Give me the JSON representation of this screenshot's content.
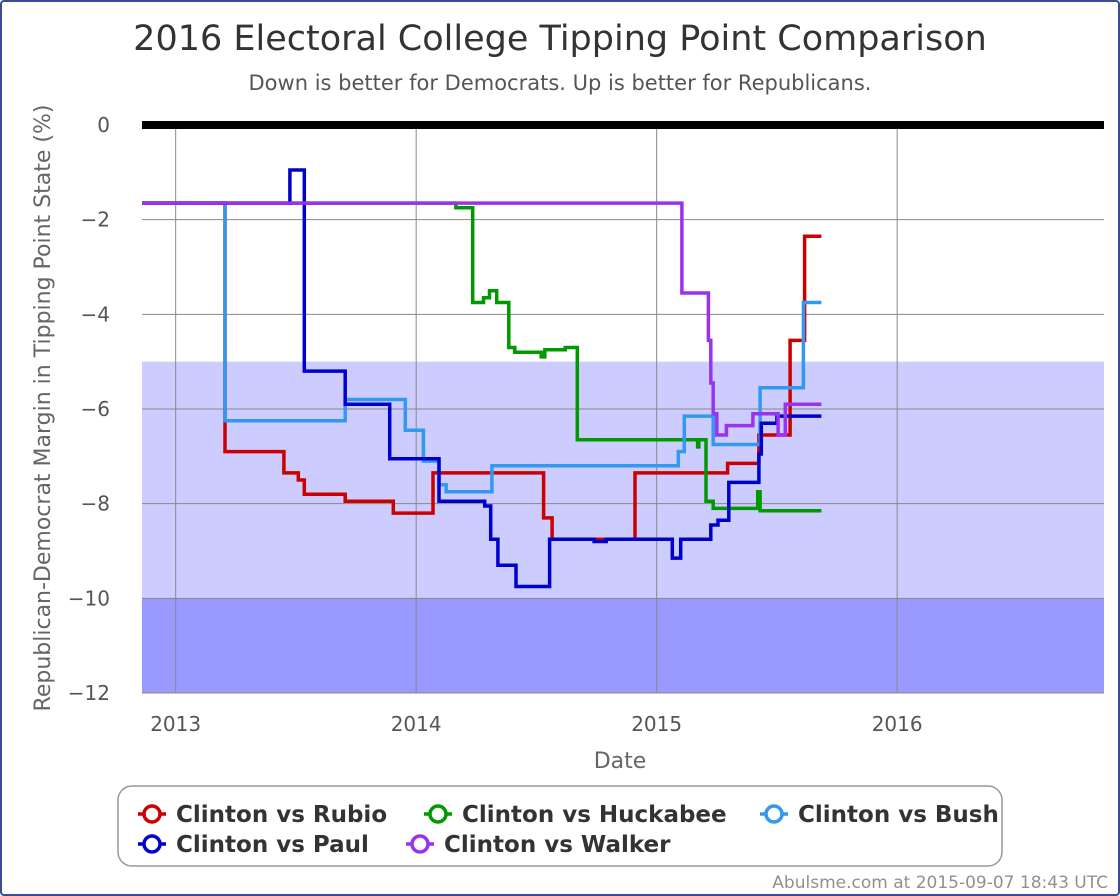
{
  "chart_data": {
    "type": "line",
    "title": "2016 Electoral College Tipping Point Comparison",
    "subtitle": "Down is better for Democrats. Up is better for Republicans.",
    "xlabel": "Date",
    "ylabel": "Republican-Democrat Margin in Tipping Point State (%)",
    "ylim": [
      -12,
      0
    ],
    "xlim": [
      2012.86,
      2016.86
    ],
    "x_ticks": [
      {
        "value": 2013,
        "label": "2013"
      },
      {
        "value": 2014,
        "label": "2014"
      },
      {
        "value": 2015,
        "label": "2015"
      },
      {
        "value": 2016,
        "label": "2016"
      }
    ],
    "y_ticks": [
      {
        "value": 0,
        "label": "0"
      },
      {
        "value": -2,
        "label": "−2"
      },
      {
        "value": -4,
        "label": "−4"
      },
      {
        "value": -6,
        "label": "−6"
      },
      {
        "value": -8,
        "label": "−8"
      },
      {
        "value": -10,
        "label": "−10"
      },
      {
        "value": -12,
        "label": "−12"
      }
    ],
    "grid": true,
    "bands": [
      {
        "from": -10,
        "to": -5,
        "color": "#ccccff"
      },
      {
        "from": -12,
        "to": -10,
        "color": "#9999ff"
      }
    ],
    "zero_line_color": "#000000",
    "legend_placement": "bottom",
    "series": [
      {
        "name": "Clinton vs Rubio",
        "color": "#cc0000",
        "points": [
          [
            2012.86,
            -1.65
          ],
          [
            2013.205,
            -1.65
          ],
          [
            2013.205,
            -6.9
          ],
          [
            2013.45,
            -6.9
          ],
          [
            2013.45,
            -7.35
          ],
          [
            2013.51,
            -7.35
          ],
          [
            2013.51,
            -7.5
          ],
          [
            2013.535,
            -7.5
          ],
          [
            2013.535,
            -7.8
          ],
          [
            2013.705,
            -7.8
          ],
          [
            2013.705,
            -7.95
          ],
          [
            2013.905,
            -7.95
          ],
          [
            2013.905,
            -8.2
          ],
          [
            2014.07,
            -8.2
          ],
          [
            2014.07,
            -7.35
          ],
          [
            2014.53,
            -7.35
          ],
          [
            2014.53,
            -8.3
          ],
          [
            2014.565,
            -8.3
          ],
          [
            2014.565,
            -8.75
          ],
          [
            2014.91,
            -8.75
          ],
          [
            2014.91,
            -7.35
          ],
          [
            2015.295,
            -7.35
          ],
          [
            2015.295,
            -7.15
          ],
          [
            2015.425,
            -7.15
          ],
          [
            2015.425,
            -6.55
          ],
          [
            2015.555,
            -6.55
          ],
          [
            2015.555,
            -4.55
          ],
          [
            2015.615,
            -4.55
          ],
          [
            2015.615,
            -2.35
          ],
          [
            2015.685,
            -2.35
          ]
        ]
      },
      {
        "name": "Clinton vs Huckabee",
        "color": "#009900",
        "points": [
          [
            2012.86,
            -1.65
          ],
          [
            2014.165,
            -1.65
          ],
          [
            2014.165,
            -1.75
          ],
          [
            2014.235,
            -1.75
          ],
          [
            2014.235,
            -3.75
          ],
          [
            2014.28,
            -3.75
          ],
          [
            2014.28,
            -3.65
          ],
          [
            2014.305,
            -3.65
          ],
          [
            2014.305,
            -3.5
          ],
          [
            2014.335,
            -3.5
          ],
          [
            2014.335,
            -3.75
          ],
          [
            2014.385,
            -3.75
          ],
          [
            2014.385,
            -4.7
          ],
          [
            2014.41,
            -4.7
          ],
          [
            2014.41,
            -4.8
          ],
          [
            2014.52,
            -4.8
          ],
          [
            2014.52,
            -4.9
          ],
          [
            2014.535,
            -4.9
          ],
          [
            2014.535,
            -4.75
          ],
          [
            2014.62,
            -4.75
          ],
          [
            2014.62,
            -4.7
          ],
          [
            2014.67,
            -4.7
          ],
          [
            2014.67,
            -6.65
          ],
          [
            2015.17,
            -6.65
          ],
          [
            2015.17,
            -6.8
          ],
          [
            2015.175,
            -6.8
          ],
          [
            2015.175,
            -6.65
          ],
          [
            2015.205,
            -6.65
          ],
          [
            2015.205,
            -7.95
          ],
          [
            2015.235,
            -7.95
          ],
          [
            2015.235,
            -8.1
          ],
          [
            2015.42,
            -8.1
          ],
          [
            2015.42,
            -7.75
          ],
          [
            2015.43,
            -7.75
          ],
          [
            2015.43,
            -8.15
          ],
          [
            2015.685,
            -8.15
          ]
        ]
      },
      {
        "name": "Clinton vs Bush",
        "color": "#3399ee",
        "points": [
          [
            2012.86,
            -1.65
          ],
          [
            2013.205,
            -1.65
          ],
          [
            2013.205,
            -6.25
          ],
          [
            2013.705,
            -6.25
          ],
          [
            2013.705,
            -5.8
          ],
          [
            2013.955,
            -5.8
          ],
          [
            2013.955,
            -6.45
          ],
          [
            2014.03,
            -6.45
          ],
          [
            2014.03,
            -7.1
          ],
          [
            2014.095,
            -7.1
          ],
          [
            2014.095,
            -7.6
          ],
          [
            2014.125,
            -7.6
          ],
          [
            2014.125,
            -7.75
          ],
          [
            2014.315,
            -7.75
          ],
          [
            2014.315,
            -7.2
          ],
          [
            2015.09,
            -7.2
          ],
          [
            2015.09,
            -6.9
          ],
          [
            2015.115,
            -6.9
          ],
          [
            2015.115,
            -6.15
          ],
          [
            2015.235,
            -6.15
          ],
          [
            2015.235,
            -6.75
          ],
          [
            2015.43,
            -6.75
          ],
          [
            2015.43,
            -5.55
          ],
          [
            2015.61,
            -5.55
          ],
          [
            2015.61,
            -3.75
          ],
          [
            2015.685,
            -3.75
          ]
        ]
      },
      {
        "name": "Clinton vs Paul",
        "color": "#0000cc",
        "points": [
          [
            2012.86,
            -1.65
          ],
          [
            2013.475,
            -1.65
          ],
          [
            2013.475,
            -0.95
          ],
          [
            2013.535,
            -0.95
          ],
          [
            2013.535,
            -5.2
          ],
          [
            2013.705,
            -5.2
          ],
          [
            2013.705,
            -5.9
          ],
          [
            2013.89,
            -5.9
          ],
          [
            2013.89,
            -7.05
          ],
          [
            2014.095,
            -7.05
          ],
          [
            2014.095,
            -7.95
          ],
          [
            2014.285,
            -7.95
          ],
          [
            2014.285,
            -8.05
          ],
          [
            2014.31,
            -8.05
          ],
          [
            2014.31,
            -8.75
          ],
          [
            2014.34,
            -8.75
          ],
          [
            2014.34,
            -9.3
          ],
          [
            2014.415,
            -9.3
          ],
          [
            2014.415,
            -9.75
          ],
          [
            2014.555,
            -9.75
          ],
          [
            2014.555,
            -8.75
          ],
          [
            2014.74,
            -8.75
          ],
          [
            2014.74,
            -8.8
          ],
          [
            2014.79,
            -8.8
          ],
          [
            2014.79,
            -8.75
          ],
          [
            2015.065,
            -8.75
          ],
          [
            2015.065,
            -9.15
          ],
          [
            2015.1,
            -9.15
          ],
          [
            2015.1,
            -8.75
          ],
          [
            2015.225,
            -8.75
          ],
          [
            2015.225,
            -8.45
          ],
          [
            2015.255,
            -8.45
          ],
          [
            2015.255,
            -8.35
          ],
          [
            2015.3,
            -8.35
          ],
          [
            2015.3,
            -7.55
          ],
          [
            2015.425,
            -7.55
          ],
          [
            2015.425,
            -6.95
          ],
          [
            2015.435,
            -6.95
          ],
          [
            2015.435,
            -6.3
          ],
          [
            2015.5,
            -6.3
          ],
          [
            2015.5,
            -6.15
          ],
          [
            2015.685,
            -6.15
          ]
        ]
      },
      {
        "name": "Clinton vs Walker",
        "color": "#9933ee",
        "points": [
          [
            2012.86,
            -1.65
          ],
          [
            2015.105,
            -1.65
          ],
          [
            2015.105,
            -3.55
          ],
          [
            2015.215,
            -3.55
          ],
          [
            2015.215,
            -4.55
          ],
          [
            2015.225,
            -4.55
          ],
          [
            2015.225,
            -5.45
          ],
          [
            2015.235,
            -5.45
          ],
          [
            2015.235,
            -6.1
          ],
          [
            2015.25,
            -6.1
          ],
          [
            2015.25,
            -6.55
          ],
          [
            2015.29,
            -6.55
          ],
          [
            2015.29,
            -6.35
          ],
          [
            2015.4,
            -6.35
          ],
          [
            2015.4,
            -6.1
          ],
          [
            2015.505,
            -6.1
          ],
          [
            2015.505,
            -6.55
          ],
          [
            2015.535,
            -6.55
          ],
          [
            2015.535,
            -5.9
          ],
          [
            2015.685,
            -5.9
          ]
        ]
      }
    ]
  },
  "legend": {
    "items": [
      {
        "label": "Clinton vs Rubio",
        "color": "#cc0000"
      },
      {
        "label": "Clinton vs Huckabee",
        "color": "#009900"
      },
      {
        "label": "Clinton vs Bush",
        "color": "#3399ee"
      },
      {
        "label": "Clinton vs Paul",
        "color": "#0000cc"
      },
      {
        "label": "Clinton vs Walker",
        "color": "#9933ee"
      }
    ]
  },
  "credit": "Abulsme.com at 2015-09-07 18:43 UTC"
}
